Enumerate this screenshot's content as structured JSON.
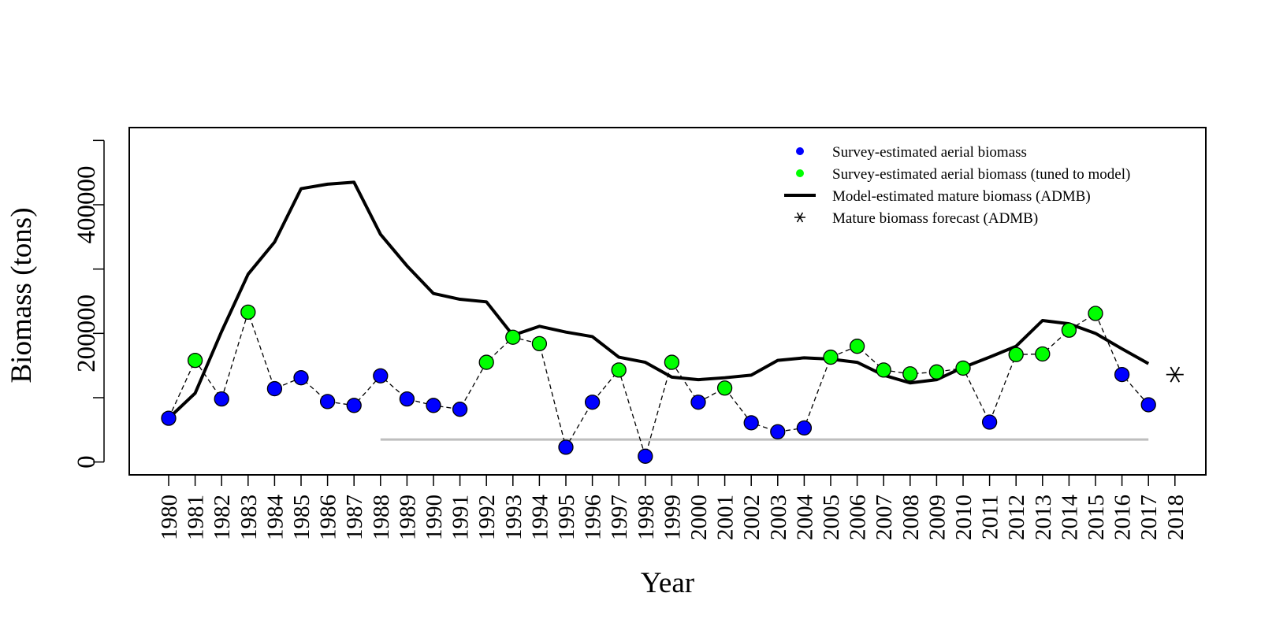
{
  "chart_data": {
    "type": "line",
    "title": "",
    "xlabel": "Year",
    "ylabel": "Biomass (tons)",
    "ylim": [
      -20000,
      520000
    ],
    "y_ticks": [
      0,
      200000,
      400000
    ],
    "y_tick_labels": [
      "0",
      "200000",
      "400000"
    ],
    "x": [
      1980,
      1981,
      1982,
      1983,
      1984,
      1985,
      1986,
      1987,
      1988,
      1989,
      1990,
      1991,
      1992,
      1993,
      1994,
      1995,
      1996,
      1997,
      1998,
      1999,
      2000,
      2001,
      2002,
      2003,
      2004,
      2005,
      2006,
      2007,
      2008,
      2009,
      2010,
      2011,
      2012,
      2013,
      2014,
      2015,
      2016,
      2017,
      2018
    ],
    "x_tick_labels": [
      "1980",
      "1981",
      "1982",
      "1983",
      "1984",
      "1985",
      "1986",
      "1987",
      "1988",
      "1989",
      "1990",
      "1991",
      "1992",
      "1993",
      "1994",
      "1995",
      "1996",
      "1997",
      "1998",
      "1999",
      "2000",
      "2001",
      "2002",
      "2003",
      "2004",
      "2005",
      "2006",
      "2007",
      "2008",
      "2009",
      "2010",
      "2011",
      "2012",
      "2013",
      "2014",
      "2015",
      "2016",
      "2017",
      "2018"
    ],
    "series": [
      {
        "name": "Model-estimated mature biomass (ADMB)",
        "kind": "line",
        "x": [
          1980,
          1981,
          1982,
          1983,
          1984,
          1985,
          1986,
          1987,
          1988,
          1989,
          1990,
          1991,
          1992,
          1993,
          1994,
          1995,
          1996,
          1997,
          1998,
          1999,
          2000,
          2001,
          2002,
          2003,
          2004,
          2005,
          2006,
          2007,
          2008,
          2009,
          2010,
          2011,
          2012,
          2013,
          2014,
          2015,
          2016,
          2017
        ],
        "values": [
          68000,
          107000,
          203000,
          292000,
          342000,
          425000,
          432000,
          435000,
          354000,
          305000,
          262000,
          253000,
          249000,
          197000,
          211000,
          202000,
          195000,
          163000,
          155000,
          132000,
          128000,
          131000,
          135000,
          158000,
          162000,
          160000,
          155000,
          135000,
          123000,
          128000,
          147000,
          163000,
          180000,
          220000,
          215000,
          200000,
          176000,
          153000
        ]
      },
      {
        "name": "Survey-estimated aerial biomass",
        "kind": "points",
        "color": "#0000ff",
        "x": [
          1980,
          1982,
          1984,
          1985,
          1986,
          1987,
          1988,
          1989,
          1990,
          1991,
          1995,
          1996,
          1998,
          2000,
          2002,
          2003,
          2004,
          2011,
          2016,
          2017
        ],
        "values": [
          68000,
          98000,
          114000,
          131000,
          94000,
          88000,
          134000,
          98000,
          88000,
          82000,
          23000,
          93000,
          9000,
          93000,
          61000,
          47000,
          53000,
          62000,
          136000,
          89000
        ]
      },
      {
        "name": "Survey-estimated aerial biomass (tuned to model)",
        "kind": "points",
        "color": "#00ff00",
        "x": [
          1981,
          1983,
          1992,
          1993,
          1994,
          1997,
          1999,
          2001,
          2005,
          2006,
          2007,
          2008,
          2009,
          2010,
          2012,
          2013,
          2014,
          2015
        ],
        "values": [
          158000,
          233000,
          155000,
          194000,
          184000,
          143000,
          155000,
          115000,
          163000,
          180000,
          143000,
          137000,
          140000,
          146000,
          167000,
          168000,
          205000,
          231000
        ]
      },
      {
        "name": "Mature biomass forecast (ADMB)",
        "kind": "marker",
        "x": [
          2018
        ],
        "values": [
          136000
        ]
      },
      {
        "name": "",
        "kind": "dashed-connector",
        "x": [
          1980,
          1981,
          1982,
          1983,
          1984,
          1985,
          1986,
          1987,
          1988,
          1989,
          1990,
          1991,
          1992,
          1993,
          1994,
          1995,
          1996,
          1997,
          1998,
          1999,
          2000,
          2001,
          2002,
          2003,
          2004,
          2005,
          2006,
          2007,
          2008,
          2009,
          2010,
          2011,
          2012,
          2013,
          2014,
          2015,
          2016,
          2017
        ],
        "values": [
          68000,
          158000,
          98000,
          233000,
          114000,
          131000,
          94000,
          88000,
          134000,
          98000,
          88000,
          82000,
          155000,
          194000,
          184000,
          23000,
          93000,
          143000,
          9000,
          155000,
          93000,
          115000,
          61000,
          47000,
          53000,
          163000,
          180000,
          143000,
          137000,
          140000,
          146000,
          62000,
          167000,
          168000,
          205000,
          231000,
          136000,
          89000
        ]
      },
      {
        "name": "",
        "kind": "threshold",
        "color": "#bebebe",
        "x": [
          1988,
          2017
        ],
        "values": [
          35000,
          35000
        ]
      }
    ],
    "legend": {
      "placement": "top-right",
      "entries": [
        {
          "label": "Survey-estimated aerial biomass",
          "symbol": "dot",
          "color": "#0000ff"
        },
        {
          "label": "Survey-estimated aerial biomass (tuned to model)",
          "symbol": "dot",
          "color": "#00ff00"
        },
        {
          "label": "Model-estimated mature biomass (ADMB)",
          "symbol": "line",
          "color": "#000000"
        },
        {
          "label": "Mature biomass forecast (ADMB)",
          "symbol": "asterisk",
          "color": "#000000"
        }
      ]
    },
    "grid": false
  }
}
